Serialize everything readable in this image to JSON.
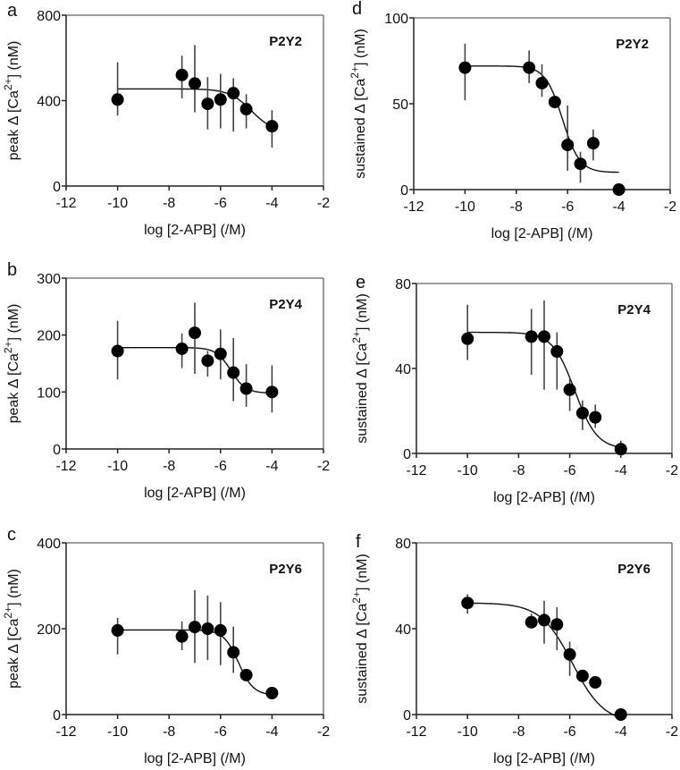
{
  "chart_data": [
    {
      "type": "scatter",
      "panel": "a",
      "title": "P2Y2",
      "xlabel": "log [2-APB] (/M)",
      "ylabel": {
        "pre": "peak Δ [Ca",
        "sup": "2+",
        "post": "] (nM)"
      },
      "xlim": [
        -12,
        -2
      ],
      "xticks": [
        -12,
        -10,
        -8,
        -6,
        -4,
        -2
      ],
      "ylim": [
        0,
        800
      ],
      "yticks": [
        0,
        400,
        800
      ],
      "x": [
        -10,
        -7.5,
        -7,
        -6.5,
        -6,
        -5.5,
        -5,
        -4
      ],
      "y": [
        405,
        520,
        480,
        385,
        405,
        435,
        360,
        280
      ],
      "err_low": [
        330,
        410,
        345,
        265,
        270,
        255,
        270,
        180
      ],
      "err_high": [
        580,
        610,
        660,
        510,
        525,
        505,
        430,
        355
      ],
      "fit": {
        "top": 455,
        "bottom": 250,
        "logIC50": -4.8,
        "hill": 1.0,
        "from": -10,
        "to": -4
      }
    },
    {
      "type": "scatter",
      "panel": "b",
      "title": "P2Y4",
      "xlabel": "log [2-APB] (/M)",
      "ylabel": {
        "pre": "peak Δ [Ca",
        "sup": "2+",
        "post": "] (nM)"
      },
      "xlim": [
        -12,
        -2
      ],
      "xticks": [
        -12,
        -10,
        -8,
        -6,
        -4,
        -2
      ],
      "ylim": [
        0,
        300
      ],
      "yticks": [
        0,
        100,
        200,
        300
      ],
      "x": [
        -10,
        -7.5,
        -7,
        -6.5,
        -6,
        -5.5,
        -5,
        -4
      ],
      "y": [
        172,
        176,
        204,
        155,
        167,
        134,
        106,
        100
      ],
      "err_low": [
        122,
        142,
        132,
        127,
        122,
        84,
        74,
        64
      ],
      "err_high": [
        225,
        203,
        257,
        172,
        210,
        195,
        149,
        147
      ],
      "fit": {
        "top": 178,
        "bottom": 98,
        "logIC50": -5.6,
        "hill": 1.5,
        "from": -10,
        "to": -4
      }
    },
    {
      "type": "scatter",
      "panel": "c",
      "title": "P2Y6",
      "xlabel": "log [2-APB] (/M)",
      "ylabel": {
        "pre": "peak Δ [Ca",
        "sup": "2+",
        "post": "] (nM)"
      },
      "xlim": [
        -12,
        -2
      ],
      "xticks": [
        -12,
        -10,
        -8,
        -6,
        -4,
        -2
      ],
      "ylim": [
        0,
        400
      ],
      "yticks": [
        0,
        200,
        400
      ],
      "x": [
        -10,
        -7.5,
        -7,
        -6.5,
        -6,
        -5.5,
        -5,
        -4
      ],
      "y": [
        196,
        182,
        204,
        200,
        196,
        145,
        92,
        50
      ],
      "err_low": [
        140,
        150,
        120,
        127,
        115,
        97,
        92,
        50
      ],
      "err_high": [
        225,
        217,
        290,
        277,
        262,
        205,
        92,
        50
      ],
      "fit": {
        "top": 197,
        "bottom": 45,
        "logIC50": -5.3,
        "hill": 1.5,
        "from": -10,
        "to": -4
      }
    },
    {
      "type": "scatter",
      "panel": "d",
      "title": "P2Y2",
      "xlabel": "log [2-APB] (/M)",
      "ylabel": {
        "pre": "sustained Δ [Ca",
        "sup": "2+",
        "post": "] (nM)"
      },
      "xlim": [
        -12,
        -2
      ],
      "xticks": [
        -12,
        -10,
        -8,
        -6,
        -4,
        -2
      ],
      "ylim": [
        0,
        100
      ],
      "yticks": [
        0,
        50,
        100
      ],
      "x": [
        -10,
        -7.5,
        -7,
        -6.5,
        -6,
        -5.5,
        -5,
        -4
      ],
      "y": [
        71,
        71,
        62,
        51,
        26,
        15,
        27,
        0
      ],
      "err_low": [
        52,
        62,
        54,
        51,
        11,
        4,
        17,
        0
      ],
      "err_high": [
        85,
        81,
        73,
        51,
        49,
        22,
        35,
        0
      ],
      "fit": {
        "top": 72,
        "bottom": 10,
        "logIC50": -6.2,
        "hill": 1.3,
        "from": -10,
        "to": -4
      }
    },
    {
      "type": "scatter",
      "panel": "e",
      "title": "P2Y4",
      "xlabel": "log [2-APB] (/M)",
      "ylabel": {
        "pre": "sustained Δ [Ca",
        "sup": "2+",
        "post": "] (nM)"
      },
      "xlim": [
        -12,
        -2
      ],
      "xticks": [
        -12,
        -10,
        -8,
        -6,
        -4,
        -2
      ],
      "ylim": [
        0,
        80
      ],
      "yticks": [
        0,
        40,
        80
      ],
      "x": [
        -10,
        -7.5,
        -7,
        -6.5,
        -6,
        -5.5,
        -5,
        -4
      ],
      "y": [
        54,
        55,
        55,
        48,
        30,
        19,
        17,
        2
      ],
      "err_low": [
        44,
        37,
        30,
        30,
        20,
        11,
        12,
        0
      ],
      "err_high": [
        70,
        68,
        72,
        57,
        36,
        25,
        23,
        6
      ],
      "fit": {
        "top": 57,
        "bottom": 2,
        "logIC50": -5.8,
        "hill": 1.0,
        "from": -10,
        "to": -4
      }
    },
    {
      "type": "scatter",
      "panel": "f",
      "title": "P2Y6",
      "xlabel": "log [2-APB] (/M)",
      "ylabel": {
        "pre": "sustained Δ [Ca",
        "sup": "2+",
        "post": "] (nM)"
      },
      "xlim": [
        -12,
        -2
      ],
      "xticks": [
        -12,
        -10,
        -8,
        -6,
        -4,
        -2
      ],
      "ylim": [
        0,
        80
      ],
      "yticks": [
        0,
        40,
        80
      ],
      "x": [
        -10,
        -7.5,
        -7,
        -6.5,
        -6,
        -5.5,
        -5,
        -4
      ],
      "y": [
        52,
        43,
        44,
        42,
        28,
        18,
        15,
        0
      ],
      "err_low": [
        47,
        41,
        33,
        30,
        18,
        15,
        15,
        0
      ],
      "err_high": [
        56,
        47,
        53,
        50,
        34,
        20,
        15,
        0
      ],
      "fit": {
        "top": 52,
        "bottom": -4,
        "logIC50": -5.9,
        "hill": 0.7,
        "from": -10,
        "to": -4
      }
    }
  ]
}
